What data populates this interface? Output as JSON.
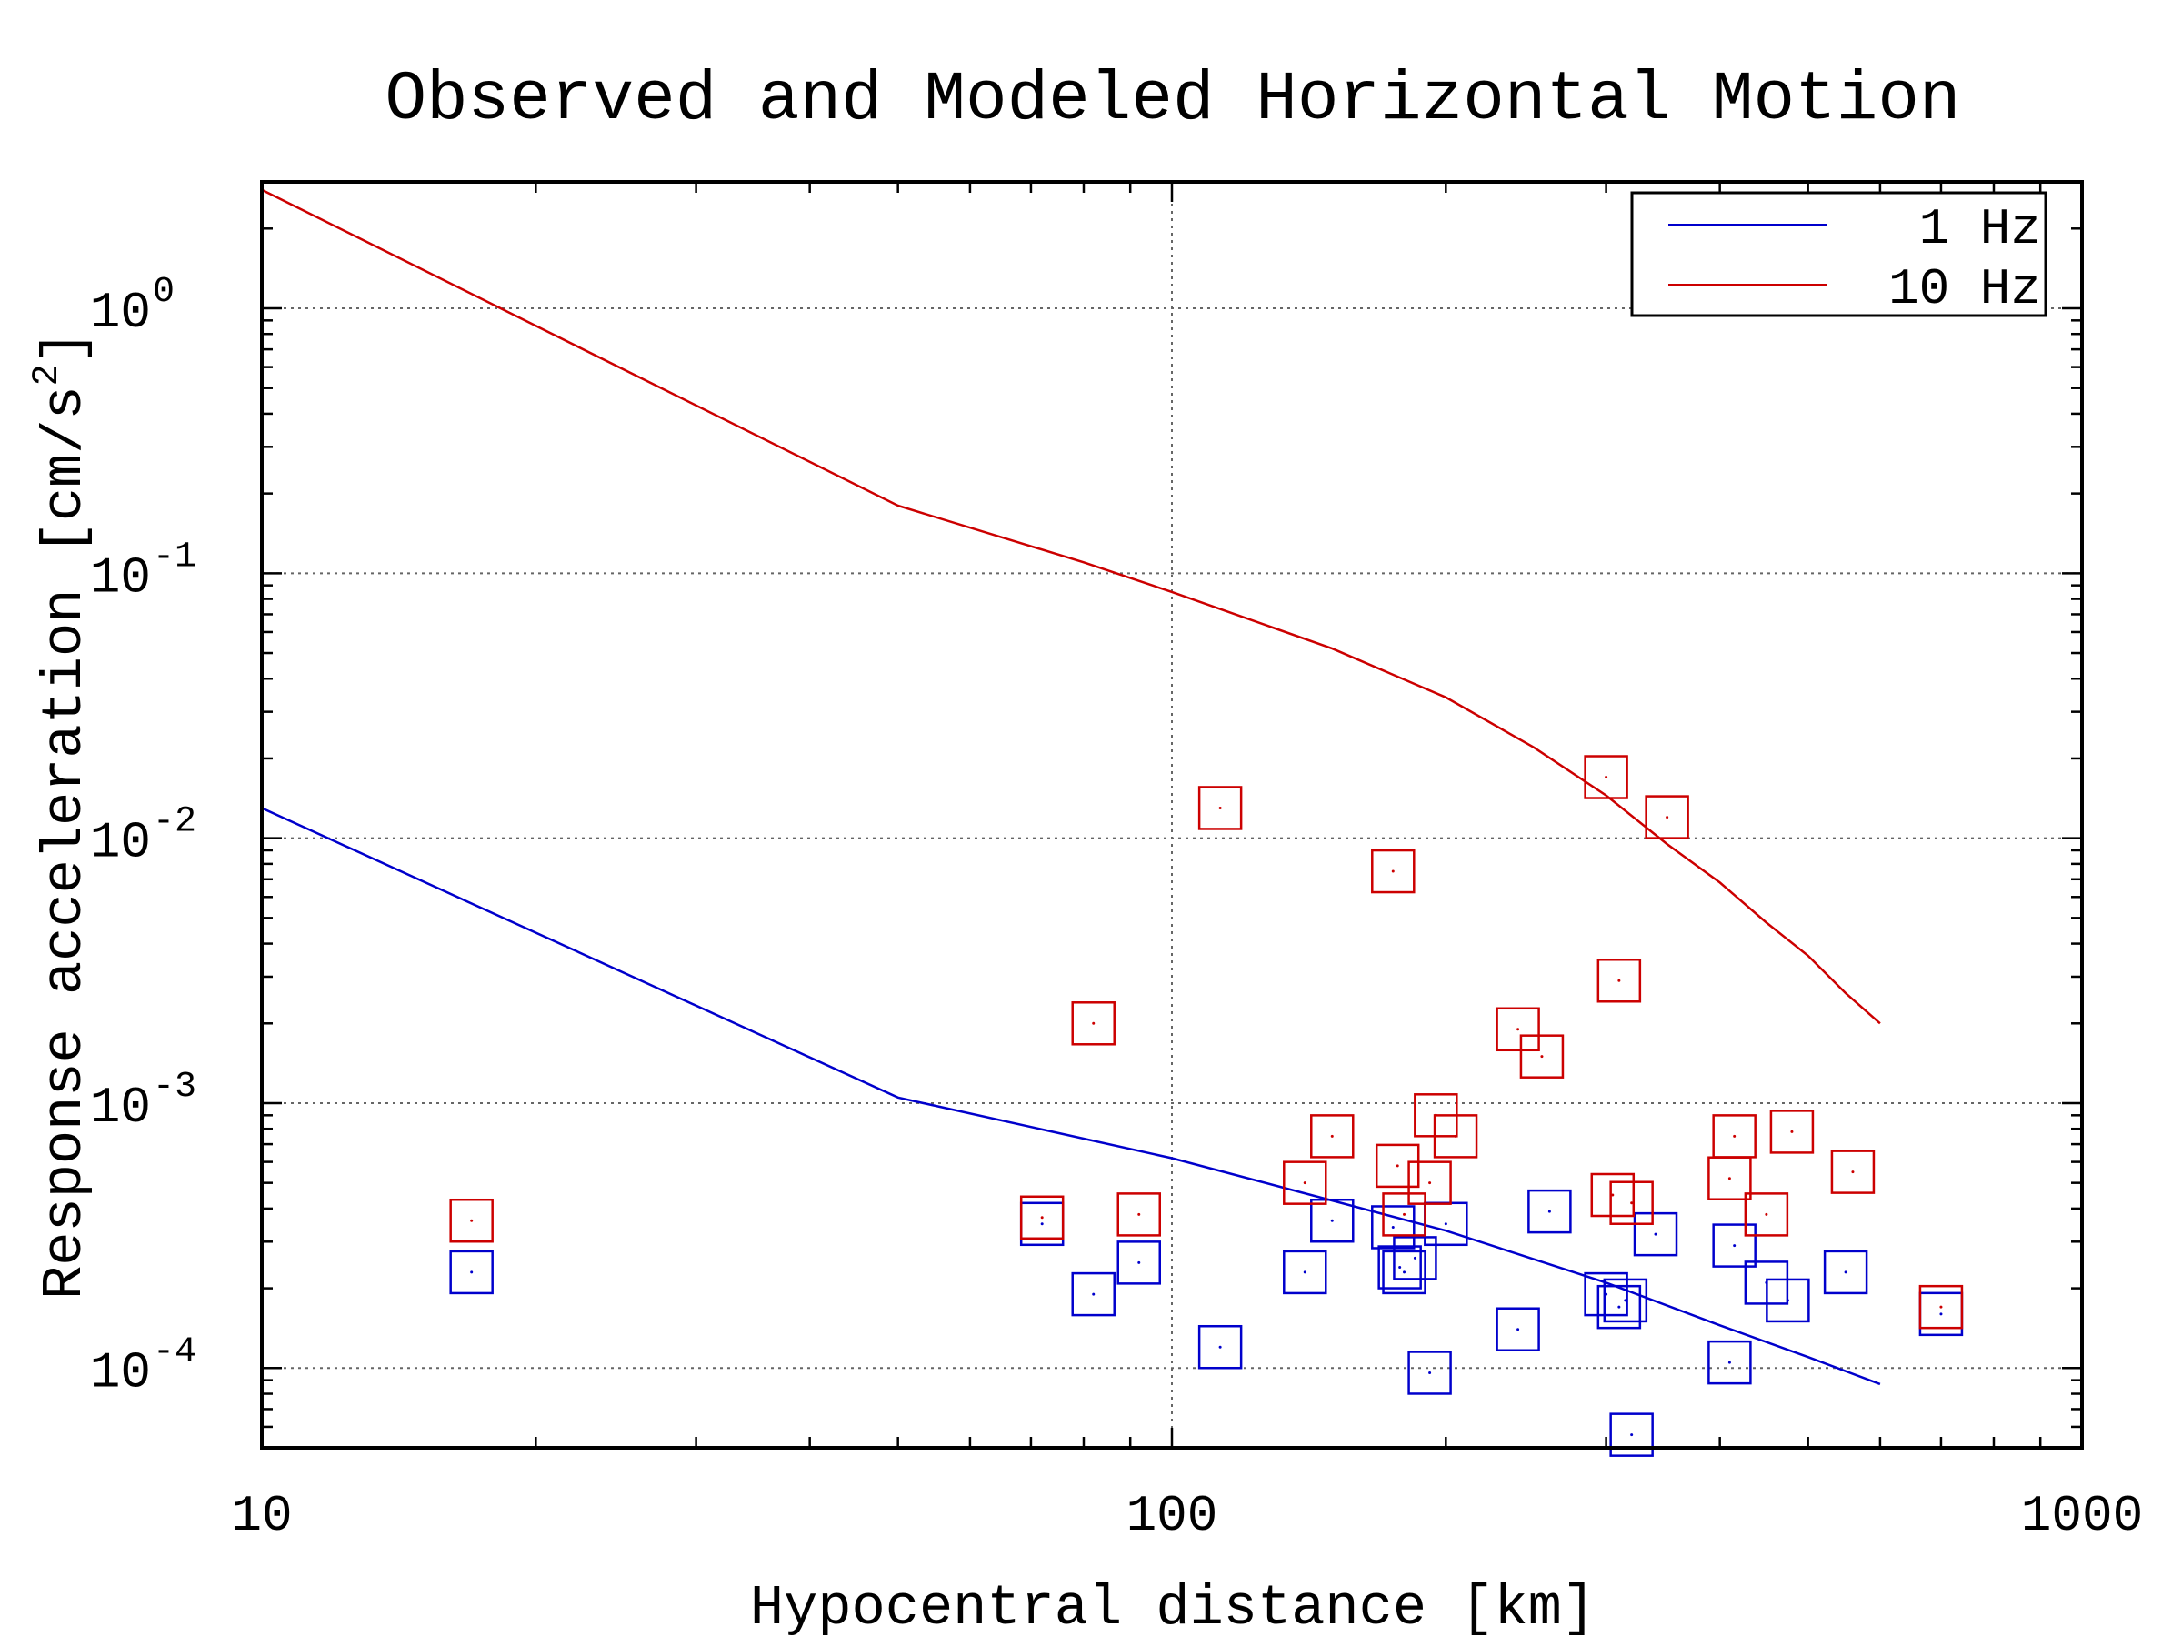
{
  "chart_data": {
    "type": "scatter",
    "title": "Observed and Modeled Horizontal Motion",
    "xlabel": "Hypocentral distance [km]",
    "ylabel": "Response acceleration [cm/s",
    "ylabel_exp": "2",
    "ylabel_close": "]",
    "xscale": "log",
    "yscale": "log",
    "xlim": [
      10,
      1000
    ],
    "ylim": [
      5e-05,
      3
    ],
    "xticks": [
      {
        "value": 10,
        "label": "10"
      },
      {
        "value": 100,
        "label": "100"
      },
      {
        "value": 1000,
        "label": "1000"
      }
    ],
    "yticks": [
      {
        "value": 1,
        "base": "10",
        "exp": "0"
      },
      {
        "value": 0.1,
        "base": "10",
        "exp": "-1"
      },
      {
        "value": 0.01,
        "base": "10",
        "exp": "-2"
      },
      {
        "value": 0.001,
        "base": "10",
        "exp": "-3"
      },
      {
        "value": 0.0001,
        "base": "10",
        "exp": "-4"
      }
    ],
    "grid": true,
    "legend_position": "top-right",
    "series": [
      {
        "name": "1 Hz",
        "kind": "line",
        "color": "#0000cc",
        "x": [
          10,
          50,
          100,
          200,
          300,
          400,
          500,
          600
        ],
        "y": [
          0.013,
          0.00105,
          0.00062,
          0.00033,
          0.00021,
          0.000145,
          0.00011,
          8.7e-05
        ]
      },
      {
        "name": "10 Hz",
        "kind": "line",
        "color": "#cc0000",
        "x": [
          10,
          50,
          80,
          100,
          150,
          200,
          250,
          300,
          350,
          400,
          450,
          500,
          550,
          600
        ],
        "y": [
          2.8,
          0.18,
          0.11,
          0.085,
          0.052,
          0.034,
          0.022,
          0.0145,
          0.0095,
          0.0068,
          0.0048,
          0.0036,
          0.0026,
          0.002
        ]
      },
      {
        "name": "",
        "kind": "scatter",
        "marker": "square",
        "color": "#0000cc",
        "x": [
          17,
          72,
          82,
          92,
          113,
          140,
          150,
          175,
          178,
          180,
          185,
          192,
          200,
          240,
          260,
          300,
          310,
          315,
          320,
          340,
          410,
          415,
          450,
          475,
          550,
          700
        ],
        "y": [
          0.00023,
          0.00035,
          0.00019,
          0.00025,
          0.00012,
          0.00023,
          0.00036,
          0.00034,
          0.00024,
          0.00023,
          0.00026,
          9.6e-05,
          0.00035,
          0.00014,
          0.00039,
          0.00019,
          0.00017,
          0.00018,
          5.6e-05,
          0.00032,
          0.000105,
          0.00029,
          0.00021,
          0.00018,
          0.00023,
          0.00016
        ]
      },
      {
        "name": "",
        "kind": "scatter",
        "marker": "square",
        "color": "#cc0000",
        "x": [
          17,
          72,
          82,
          92,
          113,
          140,
          150,
          175,
          177,
          180,
          192,
          195,
          205,
          240,
          255,
          300,
          305,
          310,
          320,
          350,
          410,
          415,
          450,
          480,
          560,
          700
        ],
        "y": [
          0.00036,
          0.00037,
          0.002,
          0.00038,
          0.013,
          0.0005,
          0.00075,
          0.0075,
          0.00058,
          0.00038,
          0.0005,
          0.0009,
          0.00075,
          0.0019,
          0.0015,
          0.017,
          0.00045,
          0.0029,
          0.00042,
          0.012,
          0.00052,
          0.00075,
          0.00038,
          0.00078,
          0.00055,
          0.00017
        ]
      }
    ]
  }
}
